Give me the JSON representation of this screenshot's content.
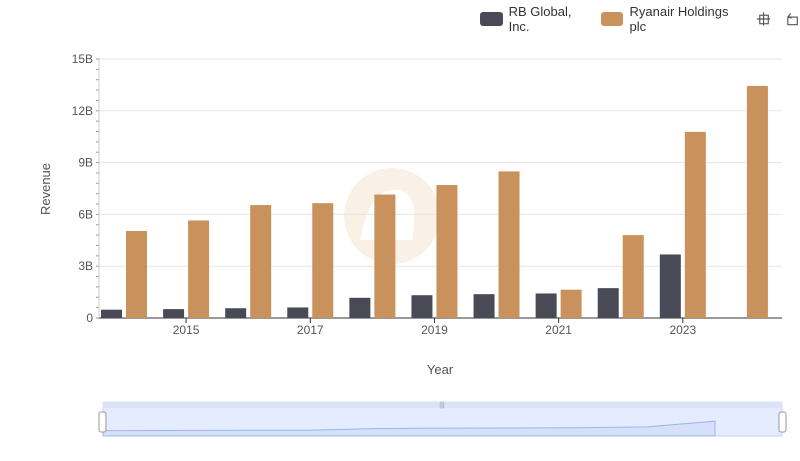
{
  "chart_data": {
    "type": "bar",
    "xlabel": "Year",
    "ylabel": "Revenue",
    "categories": [
      "2014",
      "2015",
      "2016",
      "2017",
      "2018",
      "2019",
      "2020",
      "2021",
      "2022",
      "2023",
      "2024"
    ],
    "x_tick_labels": [
      "2015",
      "2017",
      "2019",
      "2021",
      "2023"
    ],
    "y_tick_labels": [
      "0",
      "3B",
      "6B",
      "9B",
      "12B",
      "15B"
    ],
    "ylim": [
      0,
      15000000000
    ],
    "grid": true,
    "legend_position": "top-right",
    "series": [
      {
        "name": "RB Global, Inc.",
        "color": "#4a4a56",
        "values": [
          480000000,
          515000000,
          566000000,
          610000000,
          1170000000,
          1320000000,
          1380000000,
          1420000000,
          1730000000,
          3680000000,
          null
        ]
      },
      {
        "name": "Ryanair Holdings plc",
        "color": "#c9915c",
        "values": [
          5040000000,
          5650000000,
          6540000000,
          6650000000,
          7150000000,
          7700000000,
          8490000000,
          1640000000,
          4800000000,
          10780000000,
          13440000000
        ]
      }
    ]
  },
  "colors": {
    "grid": "#e6e6e6",
    "axis": "#333333",
    "navigator_fill": "#e6ecff",
    "navigator_stroke": "#b8c7f0",
    "watermark": "#f6e6d2"
  },
  "toolbar": {
    "zoom_icon": "crosshair-zoom-icon",
    "reset_icon": "reset-zoom-icon"
  }
}
